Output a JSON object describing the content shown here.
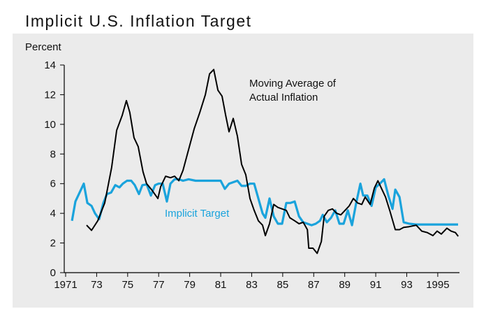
{
  "chart_data": {
    "type": "line",
    "title": "Implicit U.S. Inflation Target",
    "y_label": "Percent",
    "xlim": [
      1971,
      1996.4
    ],
    "xticks": [
      {
        "value": 1971,
        "label": "1971"
      },
      {
        "value": 1973,
        "label": "73"
      },
      {
        "value": 1975,
        "label": "75"
      },
      {
        "value": 1977,
        "label": "77"
      },
      {
        "value": 1979,
        "label": "79"
      },
      {
        "value": 1981,
        "label": "81"
      },
      {
        "value": 1983,
        "label": "83"
      },
      {
        "value": 1985,
        "label": "85"
      },
      {
        "value": 1987,
        "label": "87"
      },
      {
        "value": 1989,
        "label": "89"
      },
      {
        "value": 1991,
        "label": "91"
      },
      {
        "value": 1993,
        "label": "93"
      },
      {
        "value": 1995,
        "label": "1995"
      }
    ],
    "ylim": [
      0,
      14
    ],
    "yticks": [
      0,
      2,
      4,
      6,
      8,
      10,
      12,
      14
    ],
    "series": [
      {
        "name": "Moving Average of Actual Inflation",
        "color": "#000000",
        "x": [
          1972.35,
          1972.67,
          1973.07,
          1973.52,
          1973.97,
          1974.29,
          1974.65,
          1974.92,
          1975.14,
          1975.41,
          1975.68,
          1975.99,
          1976.22,
          1976.54,
          1976.95,
          1977.13,
          1977.45,
          1977.76,
          1978.03,
          1978.3,
          1978.57,
          1978.93,
          1979.29,
          1979.65,
          1980.01,
          1980.28,
          1980.55,
          1980.82,
          1981.09,
          1981.32,
          1981.54,
          1981.81,
          1982.08,
          1982.35,
          1982.62,
          1982.89,
          1983.16,
          1983.43,
          1983.7,
          1983.88,
          1984.15,
          1984.42,
          1984.69,
          1984.96,
          1985.23,
          1985.46,
          1985.77,
          1986.05,
          1986.32,
          1986.59,
          1986.68,
          1986.95,
          1987.22,
          1987.49,
          1987.67,
          1987.94,
          1988.21,
          1988.48,
          1988.75,
          1989.02,
          1989.29,
          1989.56,
          1989.83,
          1990.1,
          1990.32,
          1990.64,
          1990.91,
          1991.14,
          1991.36,
          1991.63,
          1991.9,
          1992.26,
          1992.53,
          1992.8,
          1993.16,
          1993.61,
          1993.97,
          1994.33,
          1994.69,
          1994.96,
          1995.23,
          1995.59,
          1995.86,
          1996.14,
          1996.32
        ],
        "values": [
          3.2,
          2.85,
          3.5,
          4.7,
          7.1,
          9.6,
          10.6,
          11.6,
          10.8,
          9.1,
          8.5,
          6.8,
          6.0,
          5.6,
          5.0,
          5.8,
          6.5,
          6.4,
          6.5,
          6.2,
          6.9,
          8.3,
          9.7,
          10.8,
          12.0,
          13.4,
          13.7,
          12.3,
          11.9,
          10.6,
          9.5,
          10.4,
          9.2,
          7.3,
          6.6,
          5.0,
          4.2,
          3.5,
          3.2,
          2.5,
          3.3,
          4.6,
          4.4,
          4.3,
          4.2,
          3.7,
          3.5,
          3.3,
          3.4,
          2.9,
          1.65,
          1.65,
          1.3,
          2.1,
          3.8,
          4.2,
          4.3,
          4.0,
          3.9,
          4.2,
          4.5,
          5.0,
          4.7,
          4.6,
          5.1,
          4.6,
          5.7,
          6.2,
          5.7,
          5.1,
          4.2,
          2.9,
          2.9,
          3.05,
          3.1,
          3.2,
          2.8,
          2.7,
          2.5,
          2.8,
          2.6,
          3.0,
          2.8,
          2.7,
          2.45
        ]
      },
      {
        "name": "Implicit Target",
        "color": "#1aa3dc",
        "x": [
          1971.41,
          1971.63,
          1971.9,
          1972.17,
          1972.4,
          1972.67,
          1972.89,
          1973.16,
          1973.43,
          1973.66,
          1973.93,
          1974.2,
          1974.47,
          1974.69,
          1974.96,
          1975.23,
          1975.46,
          1975.73,
          1975.95,
          1976.23,
          1976.5,
          1976.77,
          1976.99,
          1977.26,
          1977.53,
          1977.76,
          1978.03,
          1978.3,
          1978.57,
          1978.93,
          1979.38,
          1979.83,
          1980.28,
          1980.73,
          1981.0,
          1981.27,
          1981.54,
          1981.81,
          1982.08,
          1982.35,
          1982.62,
          1982.89,
          1983.16,
          1983.43,
          1983.7,
          1983.88,
          1984.15,
          1984.42,
          1984.69,
          1984.96,
          1985.23,
          1985.5,
          1985.77,
          1986.05,
          1986.32,
          1986.59,
          1986.86,
          1987.13,
          1987.4,
          1987.58,
          1987.85,
          1988.12,
          1988.39,
          1988.66,
          1988.93,
          1989.2,
          1989.47,
          1989.74,
          1990.01,
          1990.19,
          1990.46,
          1990.73,
          1991.0,
          1991.27,
          1991.54,
          1991.81,
          1992.08,
          1992.26,
          1992.53,
          1992.8,
          1993.16,
          1993.61,
          1994.24,
          1994.96,
          1995.59,
          1996.31
        ],
        "values": [
          3.5,
          4.8,
          5.4,
          6.0,
          4.7,
          4.5,
          4.0,
          3.6,
          4.7,
          5.3,
          5.4,
          5.9,
          5.75,
          6.0,
          6.2,
          6.2,
          5.9,
          5.3,
          5.9,
          5.95,
          5.2,
          5.9,
          6.0,
          6.0,
          4.8,
          6.0,
          6.3,
          6.3,
          6.2,
          6.3,
          6.2,
          6.2,
          6.2,
          6.2,
          6.2,
          5.65,
          6.0,
          6.1,
          6.2,
          5.85,
          5.85,
          6.0,
          6.0,
          5.0,
          4.0,
          3.7,
          5.0,
          3.8,
          3.3,
          3.3,
          4.7,
          4.7,
          4.8,
          3.8,
          3.4,
          3.3,
          3.2,
          3.3,
          3.5,
          3.9,
          3.4,
          3.7,
          4.2,
          3.3,
          3.3,
          4.2,
          3.2,
          4.7,
          6.0,
          5.2,
          5.2,
          4.5,
          5.75,
          6.0,
          6.3,
          5.2,
          4.3,
          5.6,
          5.1,
          3.4,
          3.3,
          3.25,
          3.25,
          3.25,
          3.25,
          3.25
        ]
      }
    ]
  }
}
